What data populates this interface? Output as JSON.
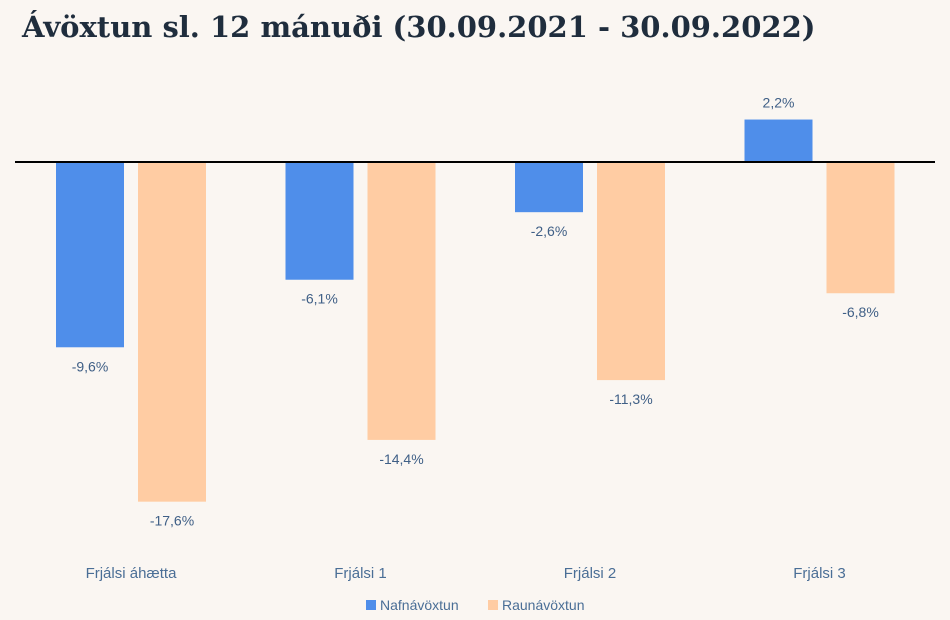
{
  "chart_data": {
    "type": "bar",
    "title": "Ávöxtun sl. 12 mánuði (30.09.2021 - 30.09.2022)",
    "categories": [
      "Frjálsi áhætta",
      "Frjálsi 1",
      "Frjálsi 2",
      "Frjálsi 3"
    ],
    "series": [
      {
        "name": "Nafnávöxtun",
        "color": "#4f8eea",
        "values": [
          -9.6,
          -6.1,
          -2.6,
          2.2
        ],
        "labels": [
          "-9,6%",
          "-6,1%",
          "-2,6%",
          "2,2%"
        ]
      },
      {
        "name": "Raunávöxtun",
        "color": "#ffcca3",
        "values": [
          -17.6,
          -14.4,
          -11.3,
          -6.8
        ],
        "labels": [
          "-17,6%",
          "-14,4%",
          "-11,3%",
          "-6,8%"
        ]
      }
    ],
    "ylim": [
      -20,
      6
    ],
    "grid": false,
    "legend": "bottom"
  }
}
